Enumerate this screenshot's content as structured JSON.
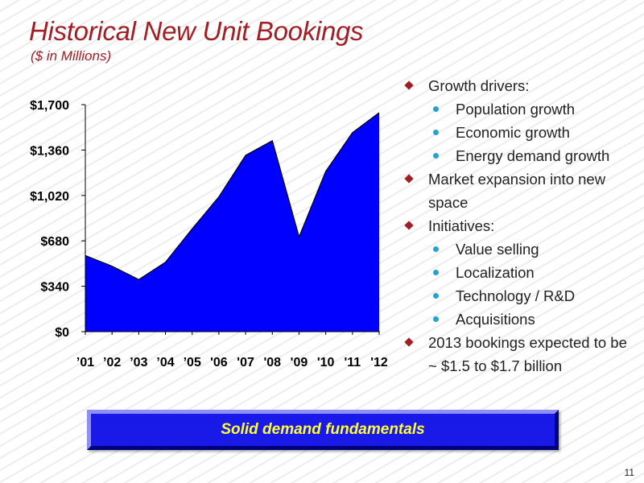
{
  "slide": {
    "title": "Historical New Unit Bookings",
    "subtitle": "($ in Millions)",
    "page_number": "11",
    "banner_text": "Solid demand fundamentals"
  },
  "chart_data": {
    "type": "area",
    "title": "Historical New Unit Bookings",
    "subtitle": "($ in Millions)",
    "xlabel": "",
    "ylabel": "",
    "categories": [
      "’01",
      "’02",
      "’03",
      "’04",
      "’05",
      "'06",
      "'07",
      "'08",
      "'09",
      "'10",
      "'11",
      "'12"
    ],
    "values": [
      570,
      490,
      390,
      520,
      770,
      1010,
      1320,
      1430,
      710,
      1200,
      1490,
      1640
    ],
    "ylim": [
      0,
      1700
    ],
    "yticks": [
      0,
      340,
      680,
      1020,
      1360,
      1700
    ],
    "ytick_labels": [
      "$0",
      "$340",
      "$680",
      "$1,020",
      "$1,360",
      "$1,700"
    ],
    "fill_color": "#0000ff",
    "line_color": "#000000",
    "grid": false,
    "legend": "none"
  },
  "bullets": [
    {
      "level": 1,
      "text": "Growth drivers:"
    },
    {
      "level": 2,
      "text": "Population growth"
    },
    {
      "level": 2,
      "text": "Economic growth"
    },
    {
      "level": 2,
      "text": "Energy demand growth"
    },
    {
      "level": 1,
      "text": "Market expansion into new space"
    },
    {
      "level": 1,
      "text": "Initiatives:"
    },
    {
      "level": 2,
      "text": "Value selling"
    },
    {
      "level": 2,
      "text": "Localization"
    },
    {
      "level": 2,
      "text": "Technology / R&D"
    },
    {
      "level": 2,
      "text": "Acquisitions"
    },
    {
      "level": 1,
      "text": "2013 bookings expected to be ~ $1.5 to $1.7 billion"
    }
  ],
  "colors": {
    "title": "#a11f24",
    "bullet_diamond": "#a11f24",
    "bullet_dot": "#2aa0cf",
    "banner_bg": "#1a1ae8",
    "banner_text": "#ffff33"
  }
}
